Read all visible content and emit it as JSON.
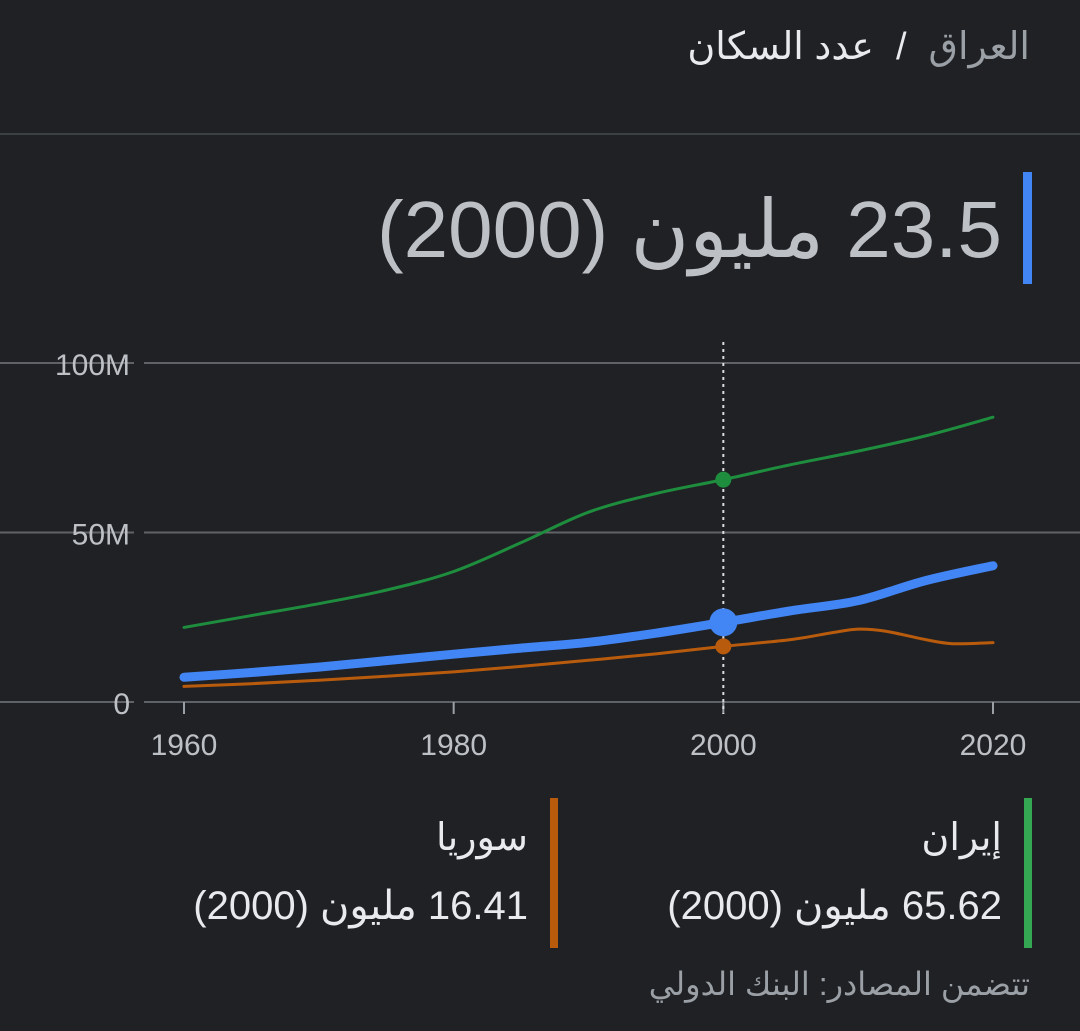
{
  "header": {
    "country": "العراق",
    "separator": "/",
    "metric": "عدد السكان"
  },
  "highlight": {
    "value_text": "23.5 مليون (2000)",
    "color": "#4285f4"
  },
  "chart_data": {
    "type": "line",
    "title": "",
    "xlabel": "",
    "ylabel": "",
    "x_ticks": [
      "1960",
      "1980",
      "2000",
      "2020"
    ],
    "y_ticks": [
      "0",
      "50M",
      "100M"
    ],
    "xlim": [
      1960,
      2020
    ],
    "ylim": [
      0,
      100
    ],
    "grid": true,
    "selected_x": 2000,
    "series": [
      {
        "key": "iran",
        "color": "#1e8e3e",
        "stroke": 3,
        "x": [
          1960,
          1965,
          1970,
          1975,
          1980,
          1985,
          1990,
          1995,
          2000,
          2005,
          2010,
          2015,
          2020
        ],
        "y": [
          22,
          25.5,
          29,
          33,
          38.5,
          47,
          56,
          61.5,
          65.6,
          70,
          74,
          78.5,
          84
        ]
      },
      {
        "key": "syria",
        "color": "#b95b0d",
        "stroke": 3,
        "x": [
          1960,
          1965,
          1970,
          1975,
          1980,
          1985,
          1990,
          1995,
          2000,
          2005,
          2008,
          2010,
          2012,
          2015,
          2017,
          2020
        ],
        "y": [
          4.6,
          5.4,
          6.4,
          7.6,
          8.9,
          10.5,
          12.3,
          14.2,
          16.41,
          18.4,
          20.4,
          21.5,
          20.9,
          18.4,
          17.2,
          17.5
        ]
      },
      {
        "key": "iraq",
        "color": "#4285f4",
        "stroke": 9,
        "x": [
          1960,
          1965,
          1970,
          1975,
          1980,
          1985,
          1990,
          1995,
          2000,
          2005,
          2010,
          2015,
          2020
        ],
        "y": [
          7.3,
          8.7,
          10.3,
          12.2,
          14.1,
          15.9,
          17.6,
          20.3,
          23.5,
          26.9,
          29.9,
          35.8,
          40.2
        ]
      }
    ]
  },
  "legend": {
    "iran": {
      "name": "إيران",
      "value_text": "65.62 مليون (2000)",
      "color": "#34a853"
    },
    "syria": {
      "name": "سوريا",
      "value_text": "16.41 مليون (2000)",
      "color": "#b95b0d"
    }
  },
  "source": "تتضمن المصادر: البنك الدولي"
}
